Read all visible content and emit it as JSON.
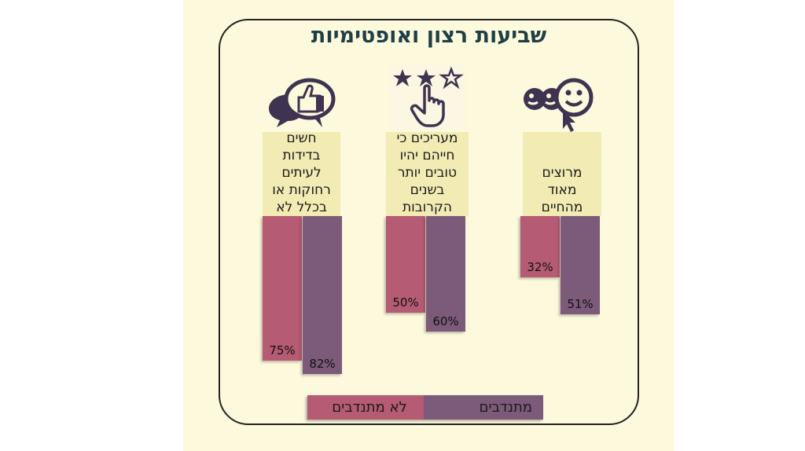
{
  "colors": {
    "non_volunteers": "#b55b73",
    "volunteers": "#7b5a7a",
    "icon": "#3e3350",
    "label_bg": "#f2ebb4",
    "panel_bg": "#fdf9dc",
    "title": "#1f3f46"
  },
  "chart_data": {
    "type": "bar",
    "title": "שביעות רצון ואופטימיות",
    "categories": [
      "חשים בדידות לעיתים רחוקות או בכלל לא",
      "מעריכים כי חייהם יהיו טובים יותר בשנים הקרובות",
      "מרוצים מאוד מהחיים"
    ],
    "category_lines": [
      [
        "חשים",
        "בדידות",
        "לעיתים",
        "רחוקות או",
        "בכלל לא"
      ],
      [
        "מעריכים כי",
        "חייהם יהיו",
        "טובים יותר",
        "בשנים",
        "הקרובות"
      ],
      [
        "מרוצים",
        "מאוד",
        "מהחיים"
      ]
    ],
    "category_icons": [
      "thumbs-up-speech-bubble-icon",
      "star-rating-hand-icon",
      "smiley-faces-cursor-icon"
    ],
    "series": [
      {
        "name": "לא מתנדבים",
        "values": [
          75,
          50,
          32
        ],
        "labels": [
          "75%",
          "50%",
          "32%"
        ]
      },
      {
        "name": "מתנדבים",
        "values": [
          82,
          60,
          51
        ],
        "labels": [
          "82%",
          "60%",
          "51%"
        ]
      }
    ],
    "ylim": [
      0,
      100
    ],
    "unit": "%",
    "legend": "bottom",
    "grid": false
  }
}
